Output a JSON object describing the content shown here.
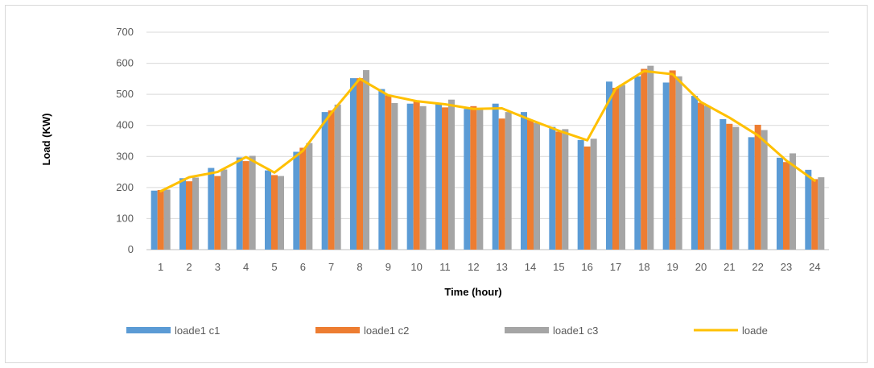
{
  "chart_data": {
    "type": "bar",
    "title": "",
    "xlabel": "Time (hour)",
    "ylabel": "Load (KW)",
    "ylim": [
      0,
      700
    ],
    "yticks": [
      0,
      100,
      200,
      300,
      400,
      500,
      600,
      700
    ],
    "grid": true,
    "legend_position": "bottom",
    "categories": [
      "1",
      "2",
      "3",
      "4",
      "5",
      "6",
      "7",
      "8",
      "9",
      "10",
      "11",
      "12",
      "13",
      "14",
      "15",
      "16",
      "17",
      "18",
      "19",
      "20",
      "21",
      "22",
      "23",
      "24"
    ],
    "series": [
      {
        "name": "loade1 c1",
        "type": "bar",
        "color": "#5b9bd5",
        "values": [
          190,
          230,
          263,
          297,
          255,
          315,
          443,
          552,
          517,
          470,
          468,
          453,
          470,
          443,
          395,
          353,
          541,
          558,
          538,
          495,
          420,
          362,
          296,
          257
        ]
      },
      {
        "name": "loade1 c2",
        "type": "bar",
        "color": "#ed7d31",
        "values": [
          192,
          220,
          237,
          285,
          240,
          328,
          448,
          552,
          497,
          478,
          458,
          462,
          422,
          418,
          380,
          332,
          521,
          582,
          577,
          473,
          405,
          402,
          282,
          227
        ]
      },
      {
        "name": "loade1 c3",
        "type": "bar",
        "color": "#a5a5a5",
        "values": [
          193,
          232,
          258,
          302,
          237,
          343,
          467,
          578,
          472,
          462,
          483,
          455,
          443,
          408,
          388,
          357,
          530,
          592,
          558,
          463,
          395,
          385,
          310,
          233
        ]
      },
      {
        "name": "loade",
        "type": "line",
        "color": "#ffc000",
        "values": [
          188,
          233,
          250,
          298,
          248,
          318,
          440,
          550,
          497,
          478,
          468,
          453,
          455,
          418,
          383,
          352,
          518,
          575,
          565,
          475,
          425,
          368,
          287,
          222
        ]
      }
    ]
  }
}
